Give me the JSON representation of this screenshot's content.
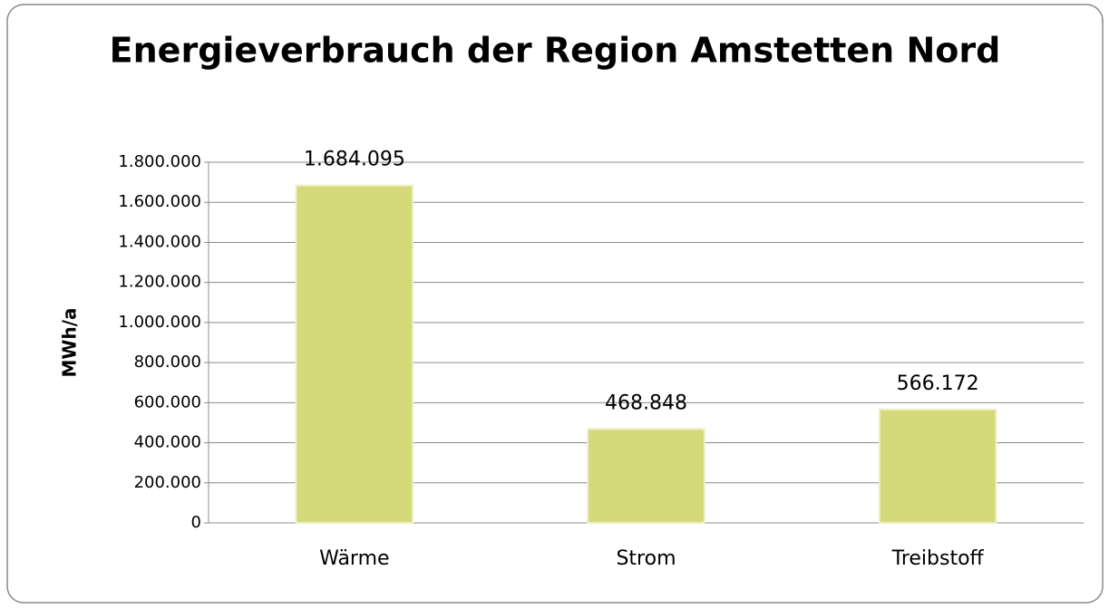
{
  "chart_data": {
    "type": "bar",
    "title": "Energieverbrauch der Region Amstetten Nord",
    "y_label": "MWh/a",
    "categories": [
      "Wärme",
      "Strom",
      "Treibstoff"
    ],
    "values": [
      1684095,
      468848,
      566172
    ],
    "value_labels": [
      "1.684.095",
      "468.848",
      "566.172"
    ],
    "color": "#d4d97a",
    "ylim": [
      0,
      1800000
    ],
    "yticks": [
      0,
      {
        "value": 200000,
        "label": "200.000"
      },
      {
        "value": 400000,
        "label": "400.000"
      },
      {
        "value": 600000,
        "label": "600.000"
      },
      {
        "value": 800000,
        "label": "800.000"
      },
      {
        "value": 1000000,
        "label": "1.000.000"
      },
      {
        "value": 1200000,
        "label": "1.200.000"
      },
      {
        "value": 1400000,
        "label": "1.400.000"
      },
      {
        "value": 1600000,
        "label": "1.600.000"
      },
      {
        "value": 1800000,
        "label": "1.800.000"
      }
    ],
    "grid": true
  }
}
